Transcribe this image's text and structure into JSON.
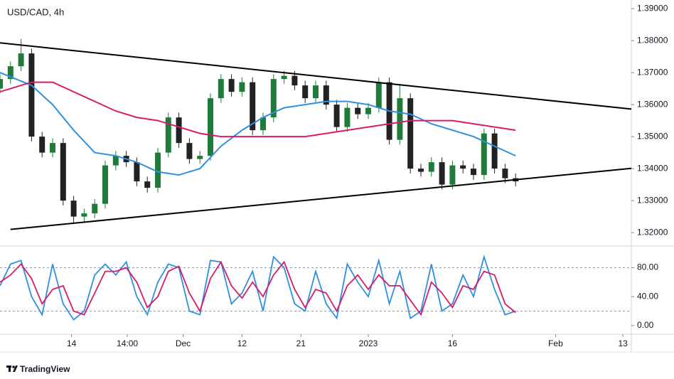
{
  "chart_data": [
    {
      "type": "candlestick",
      "title": "USD/CAD, 4h",
      "x": [
        0,
        1,
        2,
        3,
        4,
        5,
        6,
        7,
        8,
        9,
        10,
        11,
        12,
        13,
        14,
        15,
        16,
        17,
        18,
        19,
        20,
        21,
        22,
        23,
        24,
        25,
        26,
        27,
        28,
        29,
        30,
        31,
        32,
        33,
        34,
        35,
        36,
        37,
        38,
        39,
        40,
        41,
        42,
        43,
        44,
        45,
        46,
        47,
        48,
        49
      ],
      "open": [
        1.365,
        1.368,
        1.372,
        1.376,
        1.35,
        1.345,
        1.348,
        1.33,
        1.325,
        1.326,
        1.329,
        1.341,
        1.344,
        1.342,
        1.336,
        1.334,
        1.345,
        1.356,
        1.348,
        1.343,
        1.344,
        1.362,
        1.368,
        1.364,
        1.367,
        1.352,
        1.356,
        1.368,
        1.369,
        1.366,
        1.362,
        1.366,
        1.36,
        1.353,
        1.359,
        1.357,
        1.359,
        1.367,
        1.349,
        1.362,
        1.34,
        1.339,
        1.342,
        1.335,
        1.341,
        1.34,
        1.338,
        1.351,
        1.34,
        1.337
      ],
      "high": [
        1.3695,
        1.3735,
        1.3805,
        1.3775,
        1.3515,
        1.3495,
        1.3495,
        1.3315,
        1.3275,
        1.3305,
        1.3425,
        1.3455,
        1.3455,
        1.3435,
        1.3375,
        1.3465,
        1.3575,
        1.3575,
        1.3495,
        1.3455,
        1.3635,
        1.3695,
        1.3695,
        1.3685,
        1.3685,
        1.3575,
        1.3695,
        1.3705,
        1.3705,
        1.3675,
        1.3675,
        1.3675,
        1.3615,
        1.3605,
        1.3605,
        1.3605,
        1.3685,
        1.3685,
        1.3665,
        1.3635,
        1.3415,
        1.3435,
        1.3435,
        1.3425,
        1.3425,
        1.3415,
        1.3525,
        1.3525,
        1.3415,
        1.3385
      ],
      "low": [
        1.3635,
        1.3665,
        1.3705,
        1.3485,
        1.3435,
        1.3435,
        1.3285,
        1.3228,
        1.323,
        1.3245,
        1.3275,
        1.3395,
        1.3405,
        1.3345,
        1.3325,
        1.3325,
        1.3435,
        1.3465,
        1.3415,
        1.3415,
        1.3425,
        1.3605,
        1.3625,
        1.3625,
        1.3505,
        1.3505,
        1.3545,
        1.3665,
        1.3645,
        1.3605,
        1.3605,
        1.3585,
        1.3515,
        1.3515,
        1.3555,
        1.3555,
        1.3575,
        1.3475,
        1.3475,
        1.3385,
        1.3375,
        1.3375,
        1.3335,
        1.3335,
        1.3385,
        1.3365,
        1.3365,
        1.3385,
        1.3355,
        1.3345
      ],
      "close": [
        1.368,
        1.372,
        1.376,
        1.35,
        1.345,
        1.348,
        1.33,
        1.325,
        1.326,
        1.329,
        1.341,
        1.344,
        1.342,
        1.336,
        1.334,
        1.345,
        1.356,
        1.348,
        1.343,
        1.344,
        1.362,
        1.368,
        1.364,
        1.367,
        1.352,
        1.356,
        1.368,
        1.369,
        1.366,
        1.362,
        1.366,
        1.36,
        1.353,
        1.359,
        1.357,
        1.359,
        1.367,
        1.349,
        1.362,
        1.34,
        1.339,
        1.342,
        1.335,
        1.341,
        1.34,
        1.338,
        1.351,
        1.34,
        1.337,
        1.336
      ],
      "up_color": "#1e7b3a",
      "down_color": "#222222",
      "series": [
        {
          "color": "#2f8fe0",
          "x": [
            0,
            3,
            5,
            7,
            9,
            11,
            13,
            15,
            17,
            19,
            21,
            23,
            25,
            27,
            29,
            31,
            33,
            35,
            37,
            39,
            41,
            43,
            45,
            47,
            49
          ],
          "values": [
            1.37,
            1.366,
            1.36,
            1.352,
            1.345,
            1.344,
            1.342,
            1.339,
            1.338,
            1.34,
            1.347,
            1.352,
            1.356,
            1.359,
            1.36,
            1.361,
            1.361,
            1.36,
            1.358,
            1.357,
            1.354,
            1.352,
            1.35,
            1.347,
            1.344
          ]
        },
        {
          "color": "#d81b6a",
          "x": [
            0,
            3,
            5,
            7,
            9,
            11,
            13,
            15,
            17,
            19,
            21,
            23,
            25,
            27,
            29,
            31,
            33,
            35,
            37,
            39,
            41,
            43,
            45,
            47,
            49
          ],
          "values": [
            1.364,
            1.367,
            1.367,
            1.364,
            1.361,
            1.358,
            1.356,
            1.355,
            1.353,
            1.351,
            1.35,
            1.35,
            1.35,
            1.35,
            1.35,
            1.351,
            1.352,
            1.353,
            1.354,
            1.355,
            1.355,
            1.355,
            1.354,
            1.353,
            1.352
          ]
        }
      ],
      "trendlines": [
        {
          "color": "#000000",
          "x": [
            0,
            60
          ],
          "y": [
            1.3793,
            1.3586
          ]
        },
        {
          "color": "#000000",
          "x": [
            1,
            60
          ],
          "y": [
            1.321,
            1.3401
          ]
        }
      ],
      "xlim": [
        0,
        60
      ],
      "ylim": [
        1.3158,
        1.3927
      ],
      "yticks": [
        {
          "value": 1.32,
          "label": "1.32000"
        },
        {
          "value": 1.33,
          "label": "1.33000"
        },
        {
          "value": 1.34,
          "label": "1.34000"
        },
        {
          "value": 1.35,
          "label": "1.35000"
        },
        {
          "value": 1.36,
          "label": "1.36000"
        },
        {
          "value": 1.37,
          "label": "1.37000"
        },
        {
          "value": 1.38,
          "label": "1.38000"
        },
        {
          "value": 1.39,
          "label": "1.39000"
        }
      ]
    },
    {
      "type": "line",
      "x": [
        0,
        1,
        2,
        3,
        4,
        5,
        6,
        7,
        8,
        9,
        10,
        11,
        12,
        13,
        14,
        15,
        16,
        17,
        18,
        19,
        20,
        21,
        22,
        23,
        24,
        25,
        26,
        27,
        28,
        29,
        30,
        31,
        32,
        33,
        34,
        35,
        36,
        37,
        38,
        39,
        40,
        41,
        42,
        43,
        44,
        45,
        46,
        47,
        48,
        49
      ],
      "series": [
        {
          "color": "#2f8fe0",
          "values": [
            55,
            85,
            90,
            40,
            15,
            85,
            30,
            8,
            20,
            70,
            85,
            70,
            88,
            40,
            15,
            60,
            85,
            80,
            20,
            15,
            90,
            88,
            30,
            45,
            75,
            20,
            95,
            80,
            30,
            20,
            75,
            30,
            10,
            85,
            60,
            40,
            90,
            30,
            75,
            10,
            20,
            85,
            20,
            30,
            70,
            40,
            95,
            50,
            15,
            20
          ]
        },
        {
          "color": "#d81b6a",
          "values": [
            60,
            70,
            85,
            65,
            30,
            50,
            55,
            20,
            15,
            45,
            75,
            75,
            80,
            60,
            25,
            40,
            75,
            82,
            45,
            20,
            65,
            88,
            55,
            38,
            60,
            40,
            70,
            88,
            50,
            25,
            50,
            45,
            20,
            55,
            70,
            50,
            70,
            55,
            55,
            35,
            15,
            60,
            45,
            25,
            55,
            50,
            75,
            70,
            30,
            18
          ]
        }
      ],
      "bands": [
        20,
        80
      ],
      "xlim": [
        0,
        60
      ],
      "ylim": [
        -12,
        110
      ],
      "yticks": [
        {
          "value": 0,
          "label": "0.00"
        },
        {
          "value": 40,
          "label": "40.00"
        },
        {
          "value": 80,
          "label": "80.00"
        }
      ],
      "xticks": [
        {
          "value": 6.8,
          "label": "14"
        },
        {
          "value": 12.1,
          "label": "14:00"
        },
        {
          "value": 17.4,
          "label": "Dec"
        },
        {
          "value": 23.0,
          "label": "12"
        },
        {
          "value": 28.6,
          "label": "21"
        },
        {
          "value": 35.0,
          "label": "2023"
        },
        {
          "value": 43.0,
          "label": "16"
        },
        {
          "value": 52.8,
          "label": "Feb"
        },
        {
          "value": 59.2,
          "label": "13"
        }
      ]
    }
  ],
  "footer": {
    "brand": "TradingView"
  }
}
